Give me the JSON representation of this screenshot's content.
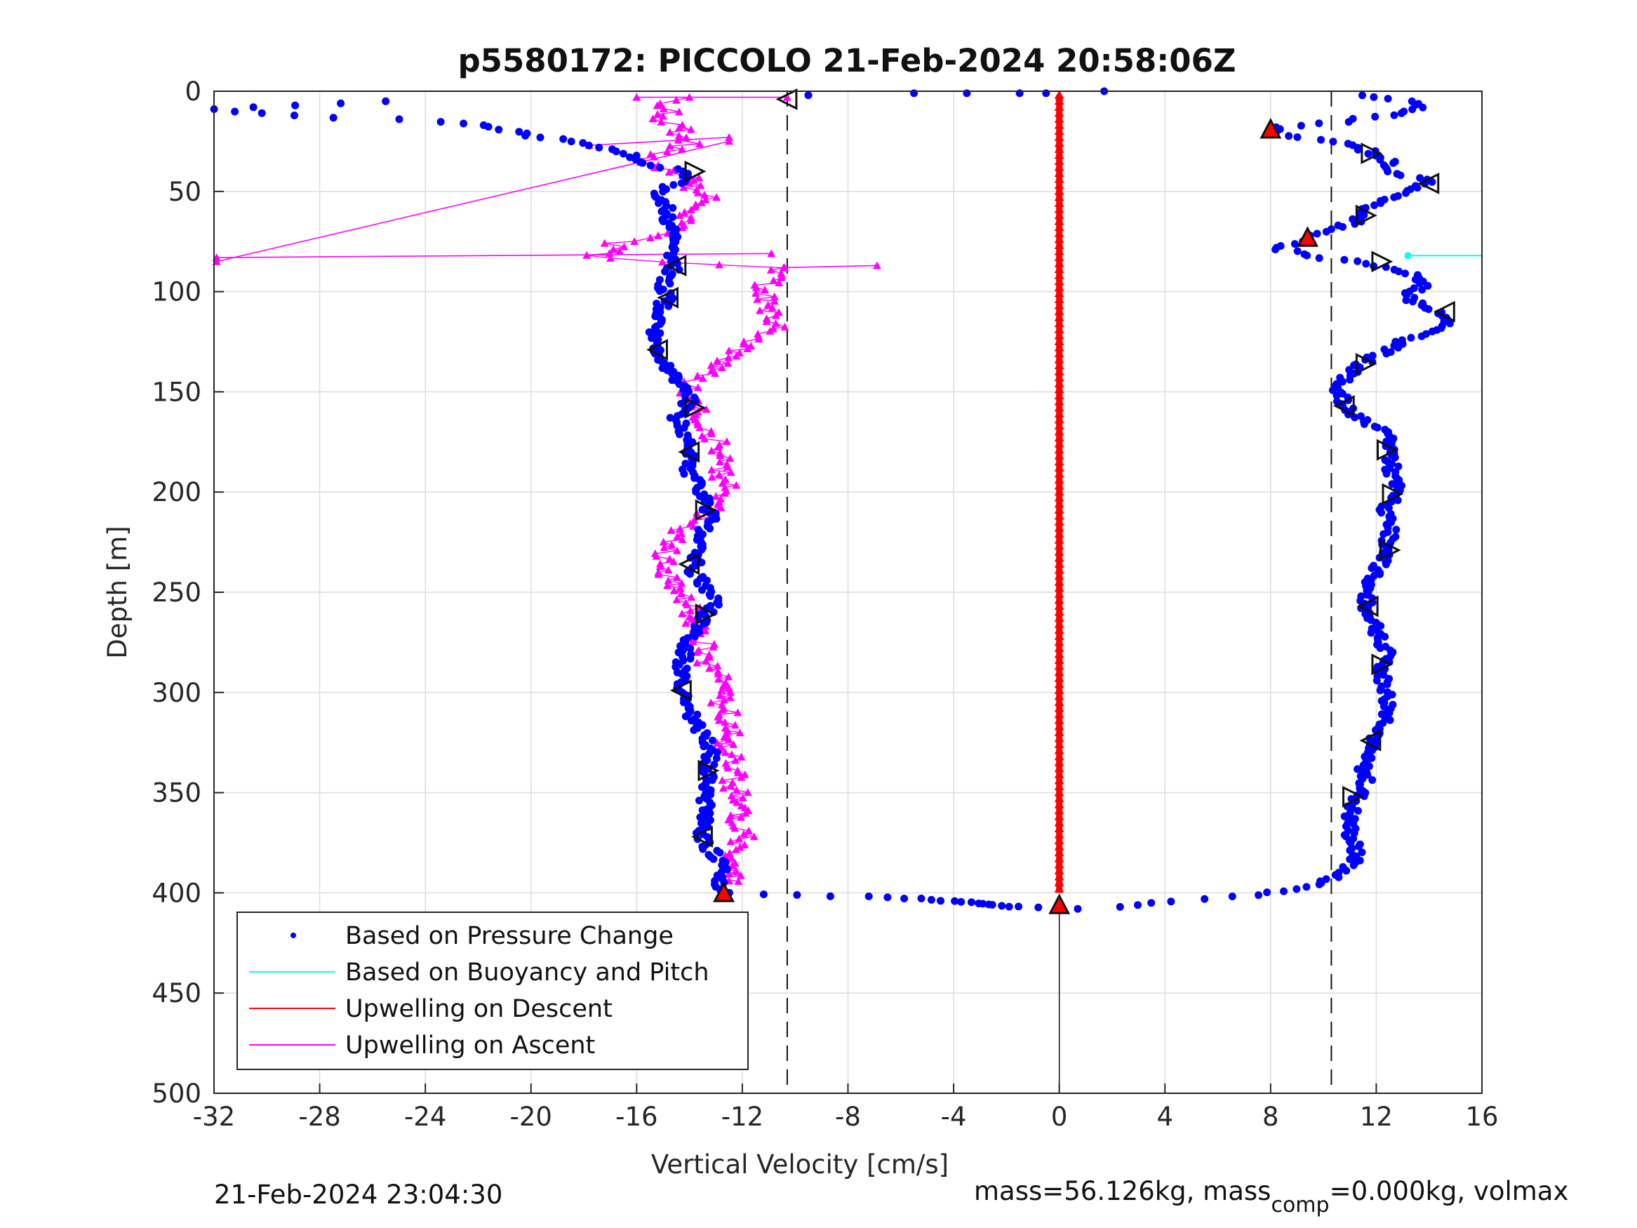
{
  "chart_data": {
    "type": "scatter",
    "title": "p5580172: PICCOLO 21-Feb-2024 20:58:06Z",
    "xlabel": "Vertical Velocity [cm/s]",
    "ylabel": "Depth [m]",
    "xlim": [
      -32,
      16
    ],
    "ylim": [
      0,
      500
    ],
    "y_reversed": true,
    "grid": true,
    "legend_position": "bottom-left",
    "xticks": [
      -32,
      -28,
      -24,
      -20,
      -16,
      -12,
      -8,
      -4,
      0,
      4,
      8,
      12,
      16
    ],
    "yticks": [
      0,
      50,
      100,
      150,
      200,
      250,
      300,
      350,
      400,
      450,
      500
    ],
    "xtick_labels": [
      "-32",
      "-28",
      "-24",
      "-20",
      "-16",
      "-12",
      "-8",
      "-4",
      "0",
      "4",
      "8",
      "12",
      "16"
    ],
    "ytick_labels": [
      "0",
      "50",
      "100",
      "150",
      "200",
      "250",
      "300",
      "350",
      "400",
      "450",
      "500"
    ],
    "reference_lines_x": [
      -10.3,
      10.3
    ],
    "legend": [
      {
        "name": "Based on Pressure Change",
        "color": "#0000ff",
        "style": "dot"
      },
      {
        "name": "Based on Buoyancy and Pitch",
        "color": "#00ffff",
        "style": "line"
      },
      {
        "name": "Upwelling on Descent",
        "color": "#ff0000",
        "style": "line"
      },
      {
        "name": "Upwelling on Ascent",
        "color": "#ff00ff",
        "style": "line"
      }
    ],
    "series": [
      {
        "name": "Based on Pressure Change",
        "color": "#0000ff",
        "descent_profile": [
          [
            11.5,
            2
          ],
          [
            13.2,
            5
          ],
          [
            13.8,
            8
          ],
          [
            12.5,
            12
          ],
          [
            10.8,
            15
          ],
          [
            8.2,
            18
          ],
          [
            8.0,
            20
          ],
          [
            8.5,
            22
          ],
          [
            10.5,
            25
          ],
          [
            11.8,
            30
          ],
          [
            12.5,
            35
          ],
          [
            12.6,
            40
          ],
          [
            14.0,
            45
          ],
          [
            13.3,
            50
          ],
          [
            12.0,
            55
          ],
          [
            11.6,
            60
          ],
          [
            11.3,
            65
          ],
          [
            10.0,
            70
          ],
          [
            9.4,
            74
          ],
          [
            8.0,
            78
          ],
          [
            9.5,
            82
          ],
          [
            11.8,
            86
          ],
          [
            13.5,
            92
          ],
          [
            13.8,
            97
          ],
          [
            13.2,
            102
          ],
          [
            13.5,
            106
          ],
          [
            14.5,
            110
          ],
          [
            14.8,
            115
          ],
          [
            14.0,
            120
          ],
          [
            13.0,
            125
          ],
          [
            12.3,
            130
          ],
          [
            11.5,
            136
          ],
          [
            10.8,
            142
          ],
          [
            10.6,
            150
          ],
          [
            10.8,
            157
          ],
          [
            11.5,
            165
          ],
          [
            12.5,
            172
          ],
          [
            12.6,
            180
          ],
          [
            12.6,
            190
          ],
          [
            12.8,
            200
          ],
          [
            12.3,
            210
          ],
          [
            12.5,
            220
          ],
          [
            12.3,
            230
          ],
          [
            12.0,
            240
          ],
          [
            11.6,
            250
          ],
          [
            11.6,
            258
          ],
          [
            12.0,
            265
          ],
          [
            12.1,
            275
          ],
          [
            12.5,
            282
          ],
          [
            12.2,
            290
          ],
          [
            12.4,
            300
          ],
          [
            12.5,
            310
          ],
          [
            12.3,
            318
          ],
          [
            11.8,
            325
          ],
          [
            11.5,
            335
          ],
          [
            11.6,
            345
          ],
          [
            11.2,
            355
          ],
          [
            11.0,
            362
          ],
          [
            11.0,
            370
          ],
          [
            11.2,
            378
          ],
          [
            11.2,
            385
          ],
          [
            10.6,
            390
          ],
          [
            10.0,
            395
          ],
          [
            9.0,
            398
          ],
          [
            7.5,
            401
          ],
          [
            5.5,
            403
          ],
          [
            3.5,
            405
          ],
          [
            2.3,
            407
          ]
        ],
        "ascent_profile": [
          [
            -12.7,
            402
          ],
          [
            -12.8,
            398
          ],
          [
            -12.8,
            393
          ],
          [
            -12.6,
            388
          ],
          [
            -13.0,
            382
          ],
          [
            -13.4,
            375
          ],
          [
            -13.6,
            368
          ],
          [
            -13.3,
            360
          ],
          [
            -13.4,
            350
          ],
          [
            -13.3,
            340
          ],
          [
            -13.2,
            330
          ],
          [
            -13.4,
            322
          ],
          [
            -13.8,
            315
          ],
          [
            -14.0,
            308
          ],
          [
            -14.3,
            300
          ],
          [
            -14.3,
            290
          ],
          [
            -14.2,
            280
          ],
          [
            -13.8,
            270
          ],
          [
            -13.5,
            262
          ],
          [
            -13.0,
            255
          ],
          [
            -13.4,
            248
          ],
          [
            -13.8,
            240
          ],
          [
            -13.8,
            230
          ],
          [
            -13.6,
            220
          ],
          [
            -13.2,
            212
          ],
          [
            -13.4,
            205
          ],
          [
            -13.6,
            198
          ],
          [
            -14.0,
            190
          ],
          [
            -14.0,
            180
          ],
          [
            -14.2,
            170
          ],
          [
            -14.5,
            162
          ],
          [
            -14.0,
            155
          ],
          [
            -14.2,
            148
          ],
          [
            -14.8,
            140
          ],
          [
            -15.2,
            130
          ],
          [
            -15.3,
            120
          ],
          [
            -15.2,
            110
          ],
          [
            -14.8,
            103
          ],
          [
            -15.0,
            95
          ],
          [
            -14.6,
            88
          ],
          [
            -14.8,
            80
          ],
          [
            -14.6,
            72
          ],
          [
            -14.9,
            65
          ],
          [
            -14.8,
            58
          ],
          [
            -15.2,
            50
          ],
          [
            -14.3,
            45
          ],
          [
            -14.0,
            41
          ],
          [
            -15.5,
            36
          ],
          [
            -16.2,
            32
          ],
          [
            -17.2,
            28
          ],
          [
            -18.5,
            25
          ],
          [
            -20.0,
            22
          ],
          [
            -21.0,
            19
          ],
          [
            -22.0,
            17
          ],
          [
            -23.5,
            15
          ],
          [
            -25.0,
            14
          ],
          [
            -27.6,
            13
          ],
          [
            -30.0,
            11
          ],
          [
            -31.9,
            9
          ],
          [
            -25.5,
            5
          ]
        ],
        "surface_points": [
          [
            -9.5,
            2
          ],
          [
            -5.5,
            1
          ],
          [
            -3.5,
            1
          ],
          [
            -1.5,
            1
          ],
          [
            -0.5,
            1
          ],
          [
            1.7,
            0
          ]
        ],
        "apogee_points": [
          [
            -11.1,
            401
          ],
          [
            -7.3,
            402
          ],
          [
            -5.2,
            403
          ],
          [
            -4.0,
            404
          ],
          [
            -3.0,
            405
          ],
          [
            -2.5,
            406
          ],
          [
            -1.5,
            407
          ],
          [
            0.7,
            408
          ]
        ]
      },
      {
        "name": "Based on Buoyancy and Pitch",
        "color": "#00ffff",
        "points": [
          [
            13.2,
            82
          ],
          [
            16.0,
            82
          ]
        ]
      },
      {
        "name": "Upwelling on Descent",
        "color": "#ff0000",
        "points": [
          [
            0,
            2
          ],
          [
            0,
            400
          ]
        ]
      },
      {
        "name": "Upwelling on Ascent",
        "color": "#ff00ff",
        "profile": [
          [
            -12.5,
            394
          ],
          [
            -12.3,
            388
          ],
          [
            -12.2,
            380
          ],
          [
            -12.0,
            372
          ],
          [
            -12.3,
            365
          ],
          [
            -12.0,
            355
          ],
          [
            -12.4,
            345
          ],
          [
            -12.2,
            335
          ],
          [
            -12.6,
            325
          ],
          [
            -12.4,
            315
          ],
          [
            -12.8,
            305
          ],
          [
            -12.7,
            295
          ],
          [
            -13.2,
            288
          ],
          [
            -13.4,
            280
          ],
          [
            -13.6,
            272
          ],
          [
            -13.8,
            262
          ],
          [
            -14.0,
            255
          ],
          [
            -14.5,
            248
          ],
          [
            -14.8,
            240
          ],
          [
            -15.0,
            232
          ],
          [
            -14.6,
            225
          ],
          [
            -14.2,
            218
          ],
          [
            -13.4,
            212
          ],
          [
            -12.8,
            205
          ],
          [
            -12.6,
            198
          ],
          [
            -12.8,
            190
          ],
          [
            -12.9,
            182
          ],
          [
            -13.0,
            175
          ],
          [
            -13.2,
            168
          ],
          [
            -13.6,
            160
          ],
          [
            -14.0,
            152
          ],
          [
            -13.8,
            145
          ],
          [
            -13.2,
            138
          ],
          [
            -12.6,
            132
          ],
          [
            -11.8,
            126
          ],
          [
            -10.8,
            120
          ],
          [
            -10.8,
            112
          ],
          [
            -11.2,
            105
          ],
          [
            -11.2,
            98
          ],
          [
            -10.8,
            92
          ],
          [
            -10.4,
            88
          ],
          [
            -15.4,
            85
          ],
          [
            -18.0,
            82
          ],
          [
            -16.5,
            80
          ],
          [
            -17.0,
            76
          ],
          [
            -15.0,
            72
          ],
          [
            -14.5,
            68
          ],
          [
            -14.3,
            62
          ],
          [
            -13.5,
            58
          ],
          [
            -13.0,
            52
          ],
          [
            -13.8,
            48
          ],
          [
            -14.0,
            42
          ],
          [
            -15.0,
            38
          ],
          [
            -16.0,
            34
          ],
          [
            -15.0,
            30
          ],
          [
            -14.0,
            26
          ],
          [
            -14.5,
            22
          ],
          [
            -14.0,
            18
          ],
          [
            -15.5,
            14
          ],
          [
            -14.5,
            10
          ],
          [
            -15.0,
            6
          ],
          [
            -14.0,
            3
          ]
        ],
        "spikes": [
          [
            -31.9,
            83
          ],
          [
            -10.9,
            81
          ],
          [
            -6.9,
            87
          ],
          [
            -10.4,
            88
          ],
          [
            -31.9,
            85
          ],
          [
            -12.5,
            25
          ],
          [
            -17.8,
            27
          ],
          [
            -12.5,
            23
          ],
          [
            -16.0,
            3
          ],
          [
            -10.3,
            3
          ],
          [
            0,
            3
          ],
          [
            0,
            394
          ],
          [
            -12.5,
            394
          ]
        ]
      }
    ],
    "markers": {
      "open_left": [
        [
          -10.3,
          4
        ],
        [
          -14.5,
          87
        ],
        [
          -14.8,
          103
        ],
        [
          -15.2,
          129
        ],
        [
          -14.0,
          180
        ],
        [
          -14.0,
          236
        ],
        [
          -14.3,
          299
        ],
        [
          -13.5,
          372
        ],
        [
          14.0,
          46
        ],
        [
          14.6,
          110
        ],
        [
          10.8,
          157
        ],
        [
          11.7,
          257
        ],
        [
          11.8,
          324
        ]
      ],
      "open_right": [
        [
          -13.8,
          40
        ],
        [
          -13.8,
          158
        ],
        [
          -13.4,
          209
        ],
        [
          -13.4,
          261
        ],
        [
          -13.3,
          339
        ],
        [
          11.8,
          31
        ],
        [
          11.6,
          62
        ],
        [
          12.2,
          85
        ],
        [
          11.6,
          136
        ],
        [
          12.4,
          179
        ],
        [
          12.6,
          201
        ],
        [
          12.5,
          229
        ],
        [
          12.2,
          286
        ],
        [
          11.1,
          352
        ]
      ],
      "filled_up": [
        [
          8.0,
          19
        ],
        [
          9.4,
          73
        ],
        [
          -12.7,
          400
        ],
        [
          0,
          406
        ]
      ]
    },
    "footer_left": "21-Feb-2024 23:04:30",
    "footer_right_main": "mass=56.126kg, mass",
    "footer_right_sub": "comp",
    "footer_right_tail": "=0.000kg, volmax"
  }
}
